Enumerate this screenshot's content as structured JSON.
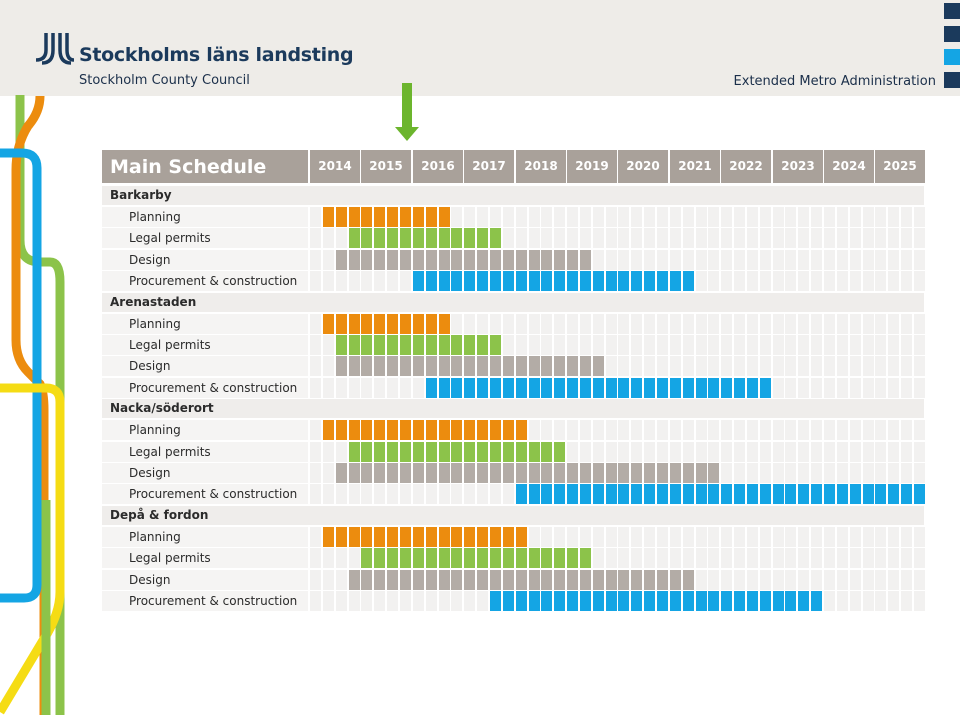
{
  "header": {
    "logo_text": "Stockholms läns landsting",
    "subtitle_left": "Stockholm County Council",
    "subtitle_right": "Extended Metro Administration"
  },
  "colors": {
    "planning": "#ec8c0e",
    "legal": "#8cc34a",
    "design": "#b3aca6",
    "construction": "#14a5e4",
    "empty": "#f2f1f0",
    "header_bg": "#a9a19a"
  },
  "chart_data": {
    "type": "table",
    "title": "Main Schedule",
    "years": [
      "2014",
      "2015",
      "2016",
      "2017",
      "2018",
      "2019",
      "2020",
      "2021",
      "2022",
      "2023",
      "2024",
      "2025"
    ],
    "unit": "quarter",
    "groups": [
      {
        "name": "Barkarby",
        "rows": [
          {
            "label": "Planning",
            "phase": "planning",
            "start": 2014.25,
            "end": 2016.75
          },
          {
            "label": "Legal permits",
            "phase": "legal",
            "start": 2014.75,
            "end": 2017.75
          },
          {
            "label": "Design",
            "phase": "design",
            "start": 2014.5,
            "end": 2019.5
          },
          {
            "label": "Procurement & construction",
            "phase": "construction",
            "start": 2016.0,
            "end": 2021.5
          }
        ]
      },
      {
        "name": "Arenastaden",
        "rows": [
          {
            "label": "Planning",
            "phase": "planning",
            "start": 2014.25,
            "end": 2016.75
          },
          {
            "label": "Legal permits",
            "phase": "legal",
            "start": 2014.5,
            "end": 2017.75
          },
          {
            "label": "Design",
            "phase": "design",
            "start": 2014.5,
            "end": 2019.75
          },
          {
            "label": "Procurement & construction",
            "phase": "construction",
            "start": 2016.25,
            "end": 2023.0
          }
        ]
      },
      {
        "name": "Nacka/söderort",
        "rows": [
          {
            "label": "Planning",
            "phase": "planning",
            "start": 2014.25,
            "end": 2018.25
          },
          {
            "label": "Legal permits",
            "phase": "legal",
            "start": 2014.75,
            "end": 2019.0
          },
          {
            "label": "Design",
            "phase": "design",
            "start": 2014.5,
            "end": 2022.0
          },
          {
            "label": "Procurement & construction",
            "phase": "construction",
            "start": 2018.0,
            "end": 2026.0
          }
        ]
      },
      {
        "name": "Depå & fordon",
        "rows": [
          {
            "label": "Planning",
            "phase": "planning",
            "start": 2014.25,
            "end": 2018.25
          },
          {
            "label": "Legal permits",
            "phase": "legal",
            "start": 2015.0,
            "end": 2019.5
          },
          {
            "label": "Design",
            "phase": "design",
            "start": 2014.75,
            "end": 2021.5
          },
          {
            "label": "Procurement & construction",
            "phase": "construction",
            "start": 2017.5,
            "end": 2024.0
          }
        ]
      }
    ]
  }
}
